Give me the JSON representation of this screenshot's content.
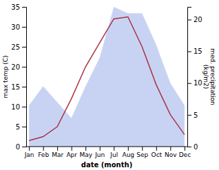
{
  "chart_data": {
    "type": "line",
    "categories": [
      "Jan",
      "Feb",
      "Mar",
      "Apr",
      "May",
      "Jun",
      "Jul",
      "Aug",
      "Sep",
      "Oct",
      "Nov",
      "Dec"
    ],
    "x_label": "date (month)",
    "y_label": "max temp (C)",
    "y2_label": "med. precipitation\n(kg/m2)",
    "ylim": [
      0,
      35
    ],
    "yticks": [
      0,
      5,
      10,
      15,
      20,
      25,
      30,
      35
    ],
    "y2lim": [
      0,
      22
    ],
    "y2ticks": [
      0,
      5,
      10,
      15,
      20
    ],
    "series": [
      {
        "type": "area",
        "axis": "y2",
        "color": "#aabbee",
        "values": [
          6.5,
          9.5,
          7.0,
          4.5,
          9.5,
          14.0,
          22.0,
          21.0,
          21.0,
          16.0,
          10.0,
          6.5
        ]
      },
      {
        "type": "line",
        "color": "#aa3344",
        "values": [
          1.5,
          2.5,
          5.0,
          12.0,
          20.0,
          26.0,
          32.0,
          32.5,
          25.0,
          15.5,
          8.0,
          3.0
        ]
      }
    ]
  }
}
